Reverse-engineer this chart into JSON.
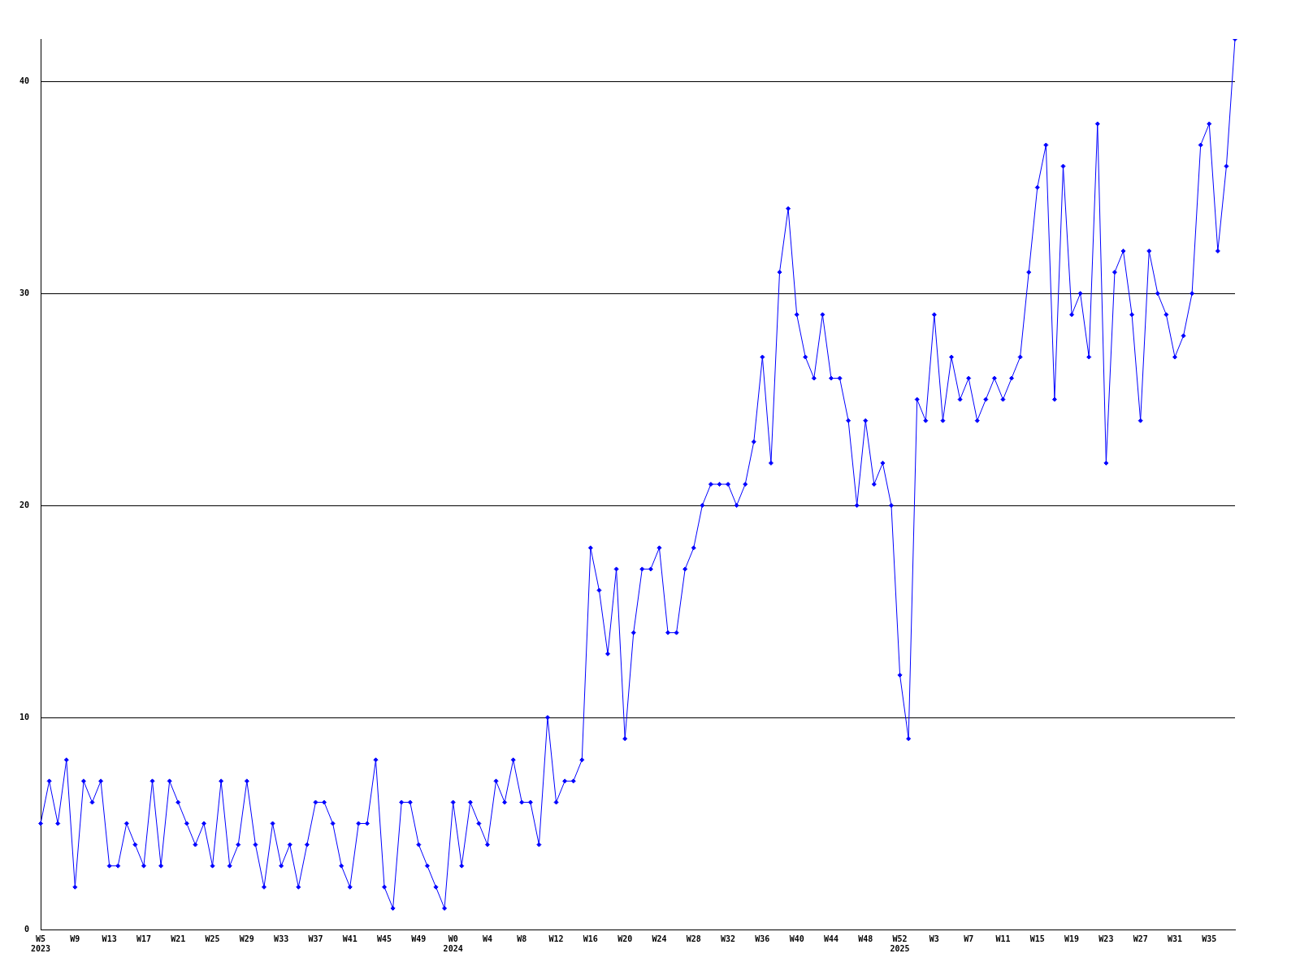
{
  "chart_data": {
    "type": "line",
    "categories": [
      "W5\n2023",
      null,
      null,
      null,
      "W9",
      null,
      null,
      null,
      "W13",
      null,
      null,
      null,
      "W17",
      null,
      null,
      null,
      "W21",
      null,
      null,
      null,
      "W25",
      null,
      null,
      null,
      "W29",
      null,
      null,
      null,
      "W33",
      null,
      null,
      null,
      "W37",
      null,
      null,
      null,
      "W41",
      null,
      null,
      null,
      "W45",
      null,
      null,
      null,
      "W49",
      null,
      null,
      null,
      "W0\n2024",
      null,
      null,
      null,
      "W4",
      null,
      null,
      null,
      "W8",
      null,
      null,
      null,
      "W12",
      null,
      null,
      null,
      "W16",
      null,
      null,
      null,
      "W20",
      null,
      null,
      null,
      "W24",
      null,
      null,
      null,
      "W28",
      null,
      null,
      null,
      "W32",
      null,
      null,
      null,
      "W36",
      null,
      null,
      null,
      "W40",
      null,
      null,
      null,
      "W44",
      null,
      null,
      null,
      "W48",
      null,
      null,
      null,
      "W52\n2025",
      null,
      null,
      null,
      "W3",
      null,
      null,
      null,
      "W7",
      null,
      null,
      null,
      "W11",
      null,
      null,
      null,
      "W15",
      null,
      null,
      null,
      "W19",
      null,
      null,
      null,
      "W23",
      null,
      null,
      null,
      "W27",
      null,
      null,
      null,
      "W31",
      null,
      null,
      null,
      "W35",
      null,
      null,
      null
    ],
    "series": [
      {
        "color": "#0000ff",
        "values": [
          5,
          7,
          5,
          8,
          2,
          7,
          6,
          7,
          3,
          3,
          5,
          4,
          3,
          7,
          3,
          7,
          6,
          5,
          4,
          5,
          3,
          7,
          3,
          4,
          7,
          4,
          2,
          5,
          3,
          4,
          2,
          4,
          6,
          6,
          5,
          3,
          2,
          5,
          5,
          8,
          2,
          1,
          6,
          6,
          4,
          3,
          2,
          1,
          6,
          3,
          6,
          5,
          4,
          7,
          6,
          8,
          6,
          6,
          4,
          10,
          6,
          7,
          7,
          8,
          18,
          16,
          13,
          17,
          9,
          14,
          17,
          17,
          18,
          14,
          14,
          17,
          18,
          20,
          21,
          21,
          21,
          20,
          21,
          23,
          27,
          22,
          31,
          34,
          29,
          27,
          26,
          29,
          26,
          26,
          24,
          20,
          24,
          21,
          22,
          20,
          12,
          9,
          25,
          24,
          29,
          24,
          27,
          25,
          26,
          24,
          25,
          26,
          25,
          26,
          27,
          31,
          35,
          37,
          25,
          36,
          29,
          30,
          27,
          38,
          22,
          31,
          32,
          29,
          24,
          32,
          30,
          29,
          27,
          28,
          30,
          37,
          38,
          32,
          36,
          42
        ]
      }
    ],
    "ylim": [
      0,
      42
    ],
    "yticks": [
      0,
      10,
      20,
      30,
      40
    ],
    "grid": "y",
    "legend": false,
    "marker": "diamond",
    "line_style": "solid"
  }
}
